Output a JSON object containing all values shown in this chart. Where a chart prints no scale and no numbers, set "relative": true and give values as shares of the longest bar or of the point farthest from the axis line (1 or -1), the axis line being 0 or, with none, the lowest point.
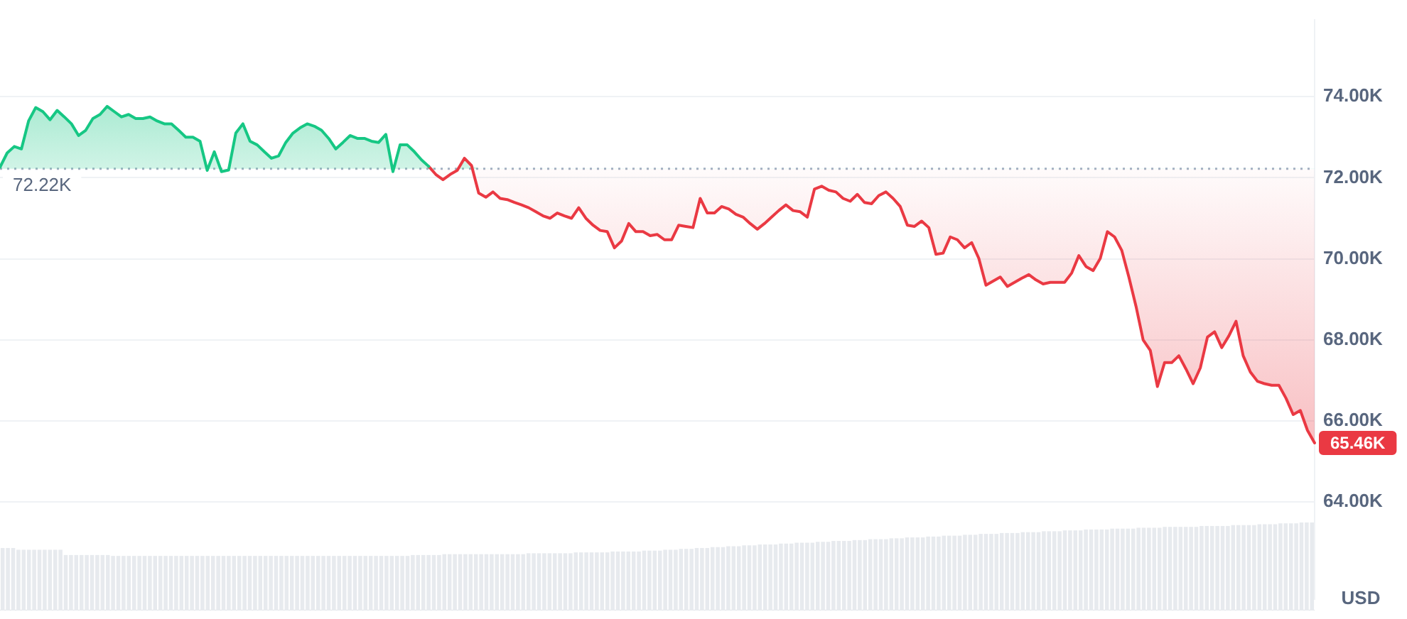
{
  "chart_data": [
    {
      "type": "line",
      "categories": [
        null,
        null,
        null,
        null,
        null,
        null,
        null,
        null,
        null,
        null,
        null,
        null,
        null,
        null,
        null,
        null,
        null,
        null,
        null,
        null,
        null,
        null,
        null,
        null,
        null,
        null,
        null,
        null,
        null,
        null,
        null,
        null,
        null,
        null,
        null,
        null,
        null,
        null,
        null,
        null,
        null,
        null,
        null,
        null,
        null,
        null,
        null,
        null,
        null,
        null,
        null,
        null,
        null,
        null,
        null,
        null,
        null,
        null,
        null,
        null,
        null,
        null,
        null,
        null,
        null,
        null,
        null,
        null,
        null,
        null,
        null,
        null,
        null,
        null,
        null,
        null,
        null,
        null,
        null,
        null,
        null,
        null,
        null,
        null,
        null,
        null,
        null,
        null,
        null,
        null,
        null,
        null,
        null,
        null,
        null,
        null,
        null,
        null,
        null,
        null,
        null,
        null,
        null,
        null,
        null,
        null,
        null,
        null,
        null,
        null,
        null,
        null,
        null,
        null,
        null,
        null,
        null,
        null,
        null,
        null,
        null,
        null,
        null,
        null,
        null,
        null,
        null,
        null,
        null,
        null,
        null,
        null,
        null,
        null,
        null,
        null,
        null,
        null,
        null,
        null,
        null,
        null,
        null,
        null,
        null,
        null,
        null,
        null,
        null,
        null,
        null,
        null,
        null,
        null,
        null,
        null,
        null,
        null,
        null,
        null,
        null,
        null,
        null,
        null,
        null,
        null,
        null,
        null,
        null,
        null,
        null,
        null,
        null,
        null,
        null,
        null,
        null,
        null,
        null,
        null,
        null,
        null,
        null,
        null,
        null
      ],
      "series": [
        {
          "color": "#16c784",
          "values": [
            72260,
            72610,
            72770,
            72710,
            73400,
            73730,
            73630,
            73430,
            73660,
            73500,
            73330,
            73040,
            73170,
            73460,
            73560,
            73760,
            73630,
            73500,
            73560,
            73460,
            73460,
            73500,
            73400,
            73330,
            73330,
            73170,
            73000,
            73000,
            72900,
            72180,
            72640,
            72150,
            72190,
            73100,
            73330,
            72900,
            72810,
            72640,
            72480,
            72540,
            72870,
            73100,
            73230,
            73330,
            73270,
            73170,
            72970,
            72710,
            72870,
            73040,
            72970,
            72970,
            72900,
            72870,
            73070,
            72150,
            72810,
            72810,
            72640,
            72440,
            72280,
            null,
            null,
            null,
            null,
            null,
            null,
            null,
            null,
            null,
            null,
            null,
            null,
            null,
            null,
            null,
            null,
            null,
            null,
            null,
            null,
            null,
            null,
            null,
            null,
            null,
            null,
            null,
            null,
            null,
            null,
            null,
            null,
            null,
            null,
            null,
            null,
            null,
            null,
            null,
            null,
            null,
            null,
            null,
            null,
            null,
            null,
            null,
            null,
            null,
            null,
            null,
            null,
            null,
            null,
            null,
            null,
            null,
            null,
            null,
            null,
            null,
            null,
            null,
            null,
            null,
            null,
            null,
            null,
            null,
            null,
            null,
            null,
            null,
            null,
            null,
            null,
            null,
            null,
            null,
            null,
            null,
            null,
            null,
            null,
            null,
            null,
            null,
            null,
            null,
            null,
            null,
            null,
            null,
            null,
            null,
            null,
            null,
            null,
            null,
            null,
            null,
            null,
            null,
            null,
            null,
            null,
            null,
            null,
            null,
            null,
            null,
            null,
            null,
            null,
            null,
            null,
            null,
            null,
            null,
            null,
            null,
            null,
            null,
            null
          ]
        },
        {
          "color": "#ea3943",
          "values": [
            null,
            null,
            null,
            null,
            null,
            null,
            null,
            null,
            null,
            null,
            null,
            null,
            null,
            null,
            null,
            null,
            null,
            null,
            null,
            null,
            null,
            null,
            null,
            null,
            null,
            null,
            null,
            null,
            null,
            null,
            null,
            null,
            null,
            null,
            null,
            null,
            null,
            null,
            null,
            null,
            null,
            null,
            null,
            null,
            null,
            null,
            null,
            null,
            null,
            null,
            null,
            null,
            null,
            null,
            null,
            null,
            null,
            null,
            null,
            null,
            72280,
            72080,
            71950,
            72080,
            72180,
            72480,
            72300,
            71620,
            71520,
            71650,
            71490,
            71460,
            71390,
            71330,
            71260,
            71160,
            71060,
            71000,
            71130,
            71060,
            71000,
            71260,
            71000,
            70830,
            70700,
            70670,
            70270,
            70440,
            70870,
            70670,
            70670,
            70570,
            70600,
            70470,
            70470,
            70830,
            70800,
            70770,
            71490,
            71130,
            71130,
            71290,
            71230,
            71100,
            71030,
            70870,
            70730,
            70870,
            71030,
            71190,
            71330,
            71190,
            71160,
            71030,
            71720,
            71790,
            71690,
            71650,
            71490,
            71420,
            71590,
            71390,
            71360,
            71560,
            71650,
            71490,
            71290,
            70830,
            70800,
            70930,
            70770,
            70110,
            70140,
            70540,
            70470,
            70270,
            70400,
            70010,
            69350,
            69450,
            69550,
            69320,
            69420,
            69520,
            69610,
            69480,
            69380,
            69420,
            69420,
            69420,
            69650,
            70080,
            69810,
            69710,
            70010,
            70670,
            70540,
            70210,
            69550,
            68830,
            68000,
            67740,
            66850,
            67440,
            67440,
            67610,
            67280,
            66920,
            67310,
            68070,
            68200,
            67810,
            68100,
            68460,
            67610,
            67210,
            66980,
            66920,
            66880,
            66880,
            66560,
            66160,
            66260,
            65770,
            65460
          ],
          "upper": [
            72260,
            72610,
            72770,
            72710,
            73400,
            73730,
            73630,
            73430,
            73660,
            73500,
            73330,
            73040,
            73170,
            73460,
            73560,
            73760,
            73630,
            73500,
            73560,
            73460,
            73460,
            73500,
            73400,
            73330,
            73330,
            73170,
            73000,
            73000,
            72900,
            72220,
            72640,
            72220,
            72220,
            73100,
            73330,
            72900,
            72810,
            72640,
            72480,
            72540,
            72870,
            73100,
            73230,
            73330,
            73270,
            73170,
            72970,
            72710,
            72870,
            73040,
            72970,
            72970,
            72900,
            72870,
            73070,
            72220,
            72810,
            72810,
            72640,
            72440,
            72280,
            72220,
            72220,
            72220,
            72220,
            72480,
            72300,
            72220,
            72220,
            72220,
            72220,
            72220,
            72220,
            72220,
            72220,
            72220,
            72220,
            72220,
            72220,
            72220,
            72220,
            72220,
            72220,
            72220,
            72220,
            72220,
            72220,
            72220,
            72220,
            72220,
            72220,
            72220,
            72220,
            72220,
            72220,
            72220,
            72220,
            72220,
            72220,
            72220,
            72220,
            72220,
            72220,
            72220,
            72220,
            72220,
            72220,
            72220,
            72220,
            72220,
            72220,
            72220,
            72220,
            72220,
            72220,
            72220,
            72220,
            72220,
            72220,
            72220,
            72220,
            72220,
            72220,
            72220,
            72220,
            72220,
            72220,
            72220,
            72220,
            72220,
            72220,
            72220,
            72220,
            72220,
            72220,
            72220,
            72220,
            72220,
            72220,
            72220,
            72220,
            72220,
            72220,
            72220,
            72220,
            72220,
            72220,
            72220,
            72220,
            72220,
            72220,
            72220,
            72220,
            72220,
            72220,
            72220,
            72220,
            72220,
            72220,
            72220,
            72220,
            72220,
            72220,
            72220,
            72220,
            72220,
            72220,
            72220,
            72220,
            72220,
            72220,
            72220,
            72220,
            72220,
            72220,
            72220,
            72220,
            72220,
            72220,
            72220,
            72220,
            72220,
            72220,
            72220,
            72220
          ],
          "lower": [
            72220,
            72220,
            72220,
            72220,
            72220,
            72220,
            72220,
            72220,
            72220,
            72220,
            72220,
            72220,
            72220,
            72220,
            72220,
            72220,
            72220,
            72220,
            72220,
            72220,
            72220,
            72220,
            72220,
            72220,
            72220,
            72220,
            72220,
            72220,
            72220,
            72180,
            72220,
            72150,
            72190,
            72220,
            72220,
            72220,
            72220,
            72220,
            72220,
            72220,
            72220,
            72220,
            72220,
            72220,
            72220,
            72220,
            72220,
            72220,
            72220,
            72220,
            72220,
            72220,
            72220,
            72220,
            72220,
            72150,
            72220,
            72220,
            72220,
            72220,
            72220,
            72080,
            71950,
            72080,
            72180,
            72220,
            72220,
            71620,
            71520,
            71650,
            71490,
            71460,
            71390,
            71330,
            71260,
            71160,
            71060,
            71000,
            71130,
            71060,
            71000,
            71260,
            71000,
            70830,
            70700,
            70670,
            70270,
            70440,
            70870,
            70670,
            70670,
            70570,
            70600,
            70470,
            70470,
            70830,
            70800,
            70770,
            71490,
            71130,
            71130,
            71290,
            71230,
            71100,
            71030,
            70870,
            70730,
            70870,
            71030,
            71190,
            71330,
            71190,
            71160,
            71030,
            71720,
            71790,
            71690,
            71650,
            71490,
            71420,
            71590,
            71390,
            71360,
            71560,
            71650,
            71490,
            71290,
            70830,
            70800,
            70930,
            70770,
            70110,
            70140,
            70540,
            70470,
            70270,
            70400,
            70010,
            69350,
            69450,
            69550,
            69320,
            69420,
            69520,
            69610,
            69480,
            69380,
            69420,
            69420,
            69420,
            69650,
            70080,
            69810,
            69710,
            70010,
            70670,
            70540,
            70210,
            69550,
            68830,
            68000,
            67740,
            66850,
            67440,
            67440,
            67610,
            67280,
            66920,
            67310,
            68070,
            68200,
            67810,
            68100,
            68460,
            67610,
            67210,
            66980,
            66920,
            66880,
            66880,
            66560,
            66160,
            66260,
            65770,
            65460
          ],
          "value_labels": [
            null,
            null,
            null,
            null,
            null,
            null,
            null,
            null,
            null,
            null,
            null,
            null,
            null,
            null,
            null,
            null,
            null,
            null,
            null,
            null,
            null,
            null,
            null,
            null,
            null,
            null,
            null,
            null,
            null,
            null,
            null,
            null,
            null,
            null,
            null,
            null,
            null,
            null,
            null,
            null,
            null,
            null,
            null,
            null,
            null,
            null,
            null,
            null,
            null,
            null,
            null,
            null,
            null,
            null,
            null,
            null,
            null,
            null,
            null,
            null,
            null,
            null,
            null,
            null,
            null,
            null,
            null,
            null,
            null,
            null,
            null,
            null,
            null,
            null,
            null,
            null,
            null,
            null,
            null,
            null,
            null,
            null,
            null,
            null,
            null,
            null,
            null,
            null,
            null,
            null,
            null,
            null,
            null,
            null,
            null,
            null,
            null,
            null,
            null,
            null,
            null,
            null,
            null,
            null,
            null,
            null,
            null,
            null,
            null,
            null,
            null,
            null,
            null,
            null,
            null,
            null,
            null,
            null,
            null,
            null,
            null,
            null,
            null,
            null,
            null,
            null,
            null,
            null,
            null,
            null,
            null,
            null,
            null,
            null,
            null,
            null,
            null,
            null,
            null,
            null,
            null,
            null,
            null,
            null,
            null,
            null,
            null,
            null,
            null,
            null,
            null,
            null,
            null,
            null,
            null,
            null,
            null,
            null,
            null,
            null,
            null,
            null,
            null,
            null,
            null,
            null,
            null,
            null,
            null,
            null,
            null,
            null,
            null,
            null,
            null,
            null,
            null,
            null,
            null,
            null,
            null,
            null,
            null,
            null,
            "65.46K"
          ]
        }
      ],
      "ylim": [
        61600,
        75900
      ],
      "yticks": [
        {
          "value": 64000,
          "label": "64.00K"
        },
        {
          "value": 66000,
          "label": "66.00K"
        },
        {
          "value": 68000,
          "label": "68.00K"
        },
        {
          "value": 70000,
          "label": "70.00K"
        },
        {
          "value": 72000,
          "label": "72.00K"
        },
        {
          "value": 74000,
          "label": "74.00K"
        }
      ],
      "ylabel": "USD",
      "ref_lines": [
        {
          "axis": "y",
          "value": 72220,
          "label": "72.22K",
          "color": "#a6b0c3",
          "line_style": "dotted"
        }
      ],
      "grid": "y",
      "marker": "none",
      "tick_labels": "y"
    },
    {
      "type": "bar",
      "categories": [
        null,
        null,
        null,
        null,
        null,
        null,
        null,
        null,
        null,
        null,
        null,
        null,
        null,
        null,
        null,
        null,
        null,
        null,
        null,
        null,
        null,
        null,
        null,
        null,
        null,
        null,
        null,
        null,
        null,
        null,
        null,
        null,
        null,
        null,
        null,
        null,
        null,
        null,
        null,
        null,
        null,
        null,
        null,
        null,
        null,
        null,
        null,
        null,
        null,
        null,
        null,
        null,
        null,
        null,
        null,
        null,
        null,
        null,
        null,
        null,
        null,
        null,
        null,
        null,
        null,
        null,
        null,
        null,
        null,
        null,
        null,
        null,
        null,
        null,
        null,
        null,
        null,
        null,
        null,
        null,
        null,
        null,
        null,
        null,
        null,
        null,
        null,
        null,
        null,
        null,
        null,
        null,
        null,
        null,
        null,
        null,
        null,
        null,
        null,
        null,
        null,
        null,
        null,
        null,
        null,
        null,
        null,
        null,
        null,
        null,
        null,
        null,
        null,
        null,
        null,
        null,
        null,
        null,
        null,
        null,
        null,
        null,
        null,
        null,
        null,
        null,
        null,
        null,
        null,
        null,
        null,
        null,
        null,
        null,
        null,
        null,
        null,
        null,
        null,
        null,
        null,
        null,
        null,
        null,
        null,
        null,
        null,
        null,
        null,
        null,
        null,
        null,
        null,
        null,
        null,
        null,
        null,
        null,
        null,
        null,
        null,
        null,
        null,
        null,
        null,
        null,
        null,
        null,
        null,
        null,
        null,
        null,
        null,
        null,
        null,
        null,
        null,
        null,
        null,
        null,
        null,
        null,
        null,
        null,
        null,
        null,
        null,
        null,
        null,
        null,
        null,
        null,
        null,
        null,
        null,
        null,
        null,
        null,
        null,
        null,
        null,
        null,
        null,
        null,
        null,
        null,
        null,
        null,
        null,
        null,
        null,
        null,
        null,
        null,
        null,
        null,
        null,
        null,
        null,
        null,
        null,
        null,
        null,
        null,
        null,
        null,
        null,
        null,
        null,
        null,
        null,
        null,
        null,
        null,
        null,
        null,
        null,
        null,
        null,
        null,
        null,
        null,
        null,
        null,
        null,
        null,
        null,
        null,
        null,
        null
      ],
      "values": [
        0.71,
        0.71,
        0.71,
        0.69,
        0.69,
        0.69,
        0.69,
        0.69,
        0.69,
        0.69,
        0.69,
        0.69,
        0.63,
        0.63,
        0.63,
        0.63,
        0.63,
        0.63,
        0.63,
        0.63,
        0.63,
        0.62,
        0.62,
        0.62,
        0.62,
        0.62,
        0.62,
        0.62,
        0.62,
        0.62,
        0.62,
        0.62,
        0.62,
        0.62,
        0.62,
        0.62,
        0.62,
        0.62,
        0.62,
        0.62,
        0.62,
        0.62,
        0.62,
        0.62,
        0.62,
        0.62,
        0.62,
        0.62,
        0.62,
        0.62,
        0.62,
        0.62,
        0.62,
        0.62,
        0.62,
        0.62,
        0.62,
        0.62,
        0.62,
        0.62,
        0.62,
        0.62,
        0.62,
        0.62,
        0.62,
        0.62,
        0.62,
        0.62,
        0.62,
        0.62,
        0.62,
        0.62,
        0.62,
        0.62,
        0.62,
        0.62,
        0.62,
        0.62,
        0.63,
        0.63,
        0.63,
        0.63,
        0.63,
        0.63,
        0.64,
        0.64,
        0.64,
        0.64,
        0.64,
        0.64,
        0.64,
        0.64,
        0.64,
        0.64,
        0.64,
        0.64,
        0.64,
        0.64,
        0.64,
        0.64,
        0.65,
        0.65,
        0.65,
        0.65,
        0.65,
        0.65,
        0.65,
        0.65,
        0.65,
        0.66,
        0.66,
        0.66,
        0.66,
        0.66,
        0.66,
        0.66,
        0.67,
        0.67,
        0.67,
        0.67,
        0.67,
        0.67,
        0.68,
        0.68,
        0.68,
        0.68,
        0.69,
        0.69,
        0.69,
        0.7,
        0.7,
        0.7,
        0.71,
        0.71,
        0.71,
        0.72,
        0.72,
        0.72,
        0.73,
        0.73,
        0.73,
        0.74,
        0.74,
        0.74,
        0.75,
        0.75,
        0.75,
        0.75,
        0.76,
        0.76,
        0.76,
        0.77,
        0.77,
        0.77,
        0.77,
        0.78,
        0.78,
        0.78,
        0.79,
        0.79,
        0.79,
        0.79,
        0.8,
        0.8,
        0.8,
        0.81,
        0.81,
        0.81,
        0.81,
        0.82,
        0.82,
        0.82,
        0.83,
        0.83,
        0.83,
        0.83,
        0.84,
        0.84,
        0.84,
        0.85,
        0.85,
        0.85,
        0.85,
        0.86,
        0.86,
        0.86,
        0.87,
        0.87,
        0.87,
        0.87,
        0.88,
        0.88,
        0.88,
        0.88,
        0.89,
        0.89,
        0.89,
        0.89,
        0.9,
        0.9,
        0.9,
        0.9,
        0.91,
        0.91,
        0.91,
        0.91,
        0.92,
        0.92,
        0.92,
        0.92,
        0.92,
        0.93,
        0.93,
        0.93,
        0.93,
        0.93,
        0.94,
        0.94,
        0.94,
        0.94,
        0.94,
        0.95,
        0.95,
        0.95,
        0.95,
        0.95,
        0.95,
        0.95,
        0.96,
        0.96,
        0.96,
        0.96,
        0.96,
        0.96,
        0.97,
        0.97,
        0.97,
        0.97,
        0.97,
        0.98,
        0.98,
        0.98,
        0.98,
        0.99,
        0.99,
        0.99,
        0.99,
        1.0,
        1.0,
        1.0
      ],
      "color": "#e7eaee",
      "relative": true,
      "tick_labels": false
    }
  ]
}
